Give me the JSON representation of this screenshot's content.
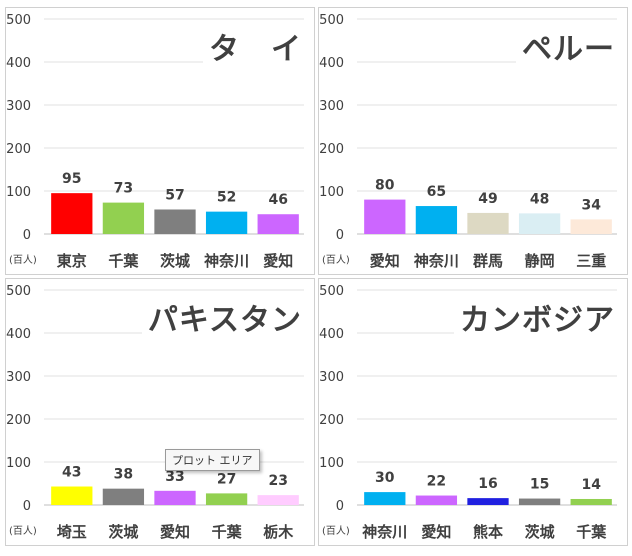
{
  "chart_data": [
    {
      "type": "bar",
      "title": "タ　イ",
      "unit_label": "(百人)",
      "ylim": [
        0,
        500
      ],
      "yticks": [
        0,
        100,
        200,
        300,
        400,
        500
      ],
      "categories": [
        "東京",
        "千葉",
        "茨城",
        "神奈川",
        "愛知"
      ],
      "values": [
        95,
        73,
        57,
        52,
        46
      ],
      "colors": [
        "#ff0000",
        "#92d050",
        "#7f7f7f",
        "#00b0f0",
        "#cc66ff"
      ]
    },
    {
      "type": "bar",
      "title": "ペルー",
      "unit_label": "(百人)",
      "ylim": [
        0,
        500
      ],
      "yticks": [
        0,
        100,
        200,
        300,
        400,
        500
      ],
      "categories": [
        "愛知",
        "神奈川",
        "群馬",
        "静岡",
        "三重"
      ],
      "values": [
        80,
        65,
        49,
        48,
        34
      ],
      "colors": [
        "#cc66ff",
        "#00b0f0",
        "#ddd9c3",
        "#daeef3",
        "#fde9d9"
      ]
    },
    {
      "type": "bar",
      "title": "パキスタン",
      "unit_label": "(百人)",
      "ylim": [
        0,
        500
      ],
      "yticks": [
        0,
        100,
        200,
        300,
        400,
        500
      ],
      "categories": [
        "埼玉",
        "茨城",
        "愛知",
        "千葉",
        "栃木"
      ],
      "values": [
        43,
        38,
        33,
        27,
        23
      ],
      "colors": [
        "#ffff00",
        "#7f7f7f",
        "#cc66ff",
        "#92d050",
        "#ffccff"
      ]
    },
    {
      "type": "bar",
      "title": "カンボジア",
      "unit_label": "(百人)",
      "ylim": [
        0,
        500
      ],
      "yticks": [
        0,
        100,
        200,
        300,
        400,
        500
      ],
      "categories": [
        "神奈川",
        "愛知",
        "熊本",
        "茨城",
        "千葉"
      ],
      "values": [
        30,
        22,
        16,
        15,
        14
      ],
      "colors": [
        "#00b0f0",
        "#cc66ff",
        "#2020e0",
        "#7f7f7f",
        "#92d050"
      ]
    }
  ],
  "tooltip": "プロット エリア"
}
